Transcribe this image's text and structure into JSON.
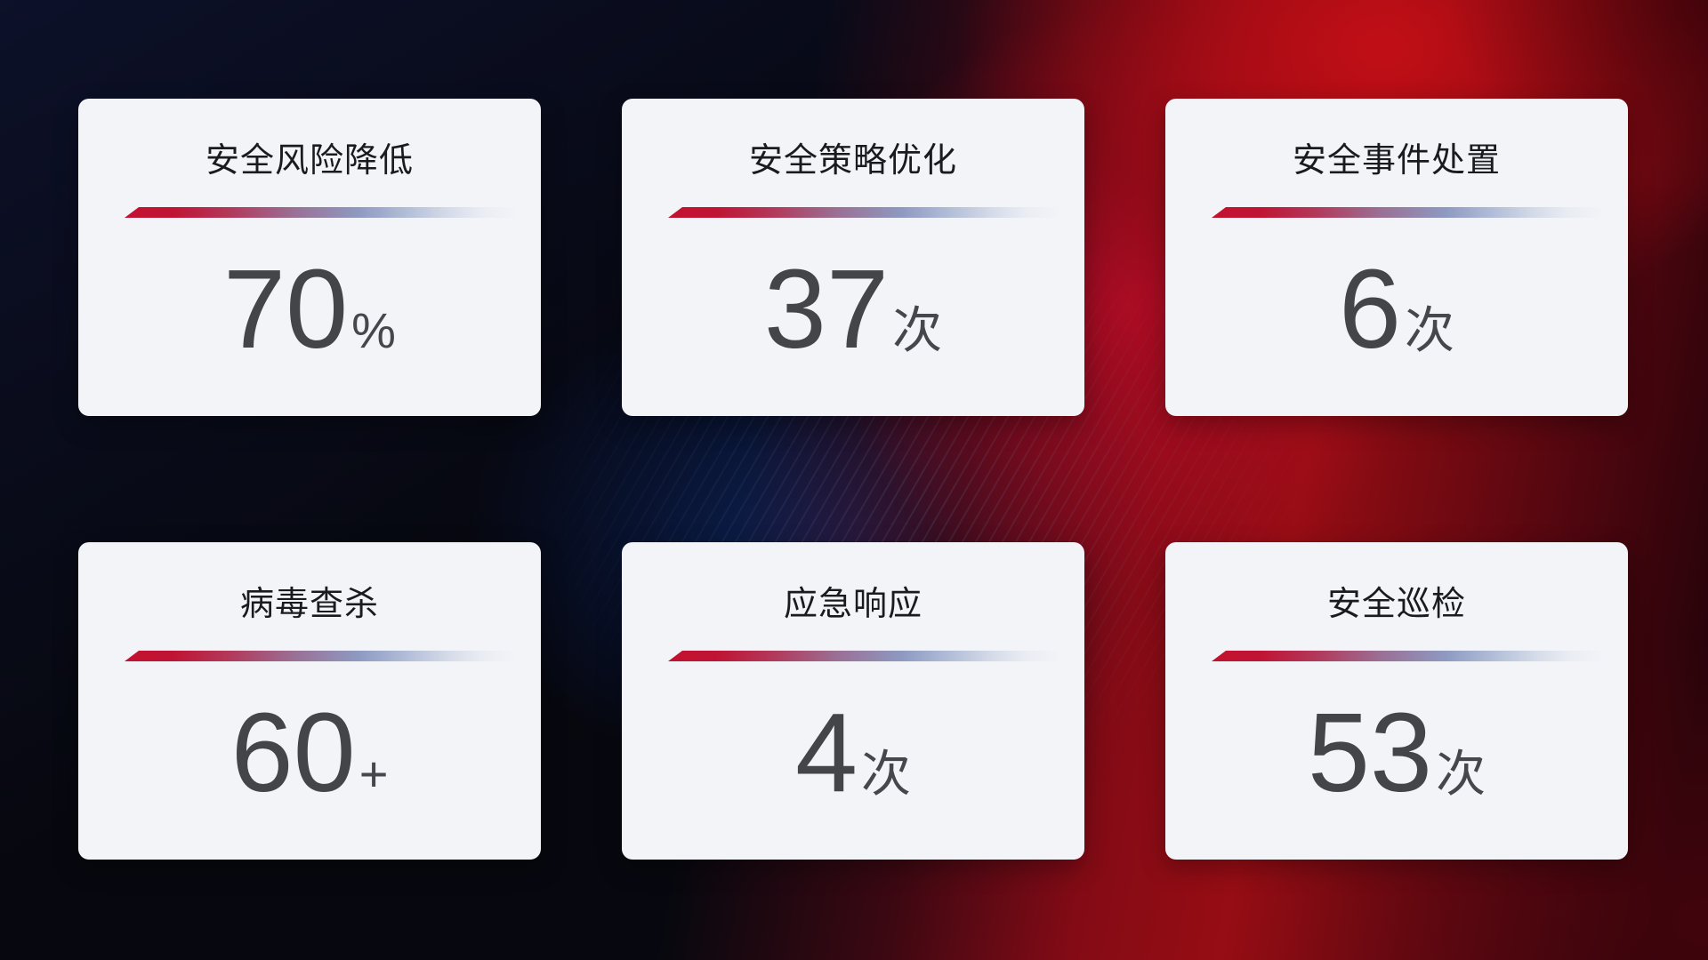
{
  "cards": [
    {
      "title": "安全风险降低",
      "value": "70",
      "unit": "%"
    },
    {
      "title": "安全策略优化",
      "value": "37",
      "unit": "次"
    },
    {
      "title": "安全事件处置",
      "value": "6",
      "unit": "次"
    },
    {
      "title": "病毒查杀",
      "value": "60",
      "unit": "+"
    },
    {
      "title": "应急响应",
      "value": "4",
      "unit": "次"
    },
    {
      "title": "安全巡检",
      "value": "53",
      "unit": "次"
    }
  ],
  "colors": {
    "card_background": "#f3f4f8",
    "title_text": "#1a1b1e",
    "value_text": "#434549",
    "divider_gradient_start": "#c31230",
    "divider_gradient_mid": "#8e9ac2",
    "divider_gradient_end": "#e9ecf3",
    "background_base": "#06070f",
    "background_navy": "#0d1129",
    "background_blue_glow": "#123a96",
    "background_red": "#9e0d14"
  }
}
